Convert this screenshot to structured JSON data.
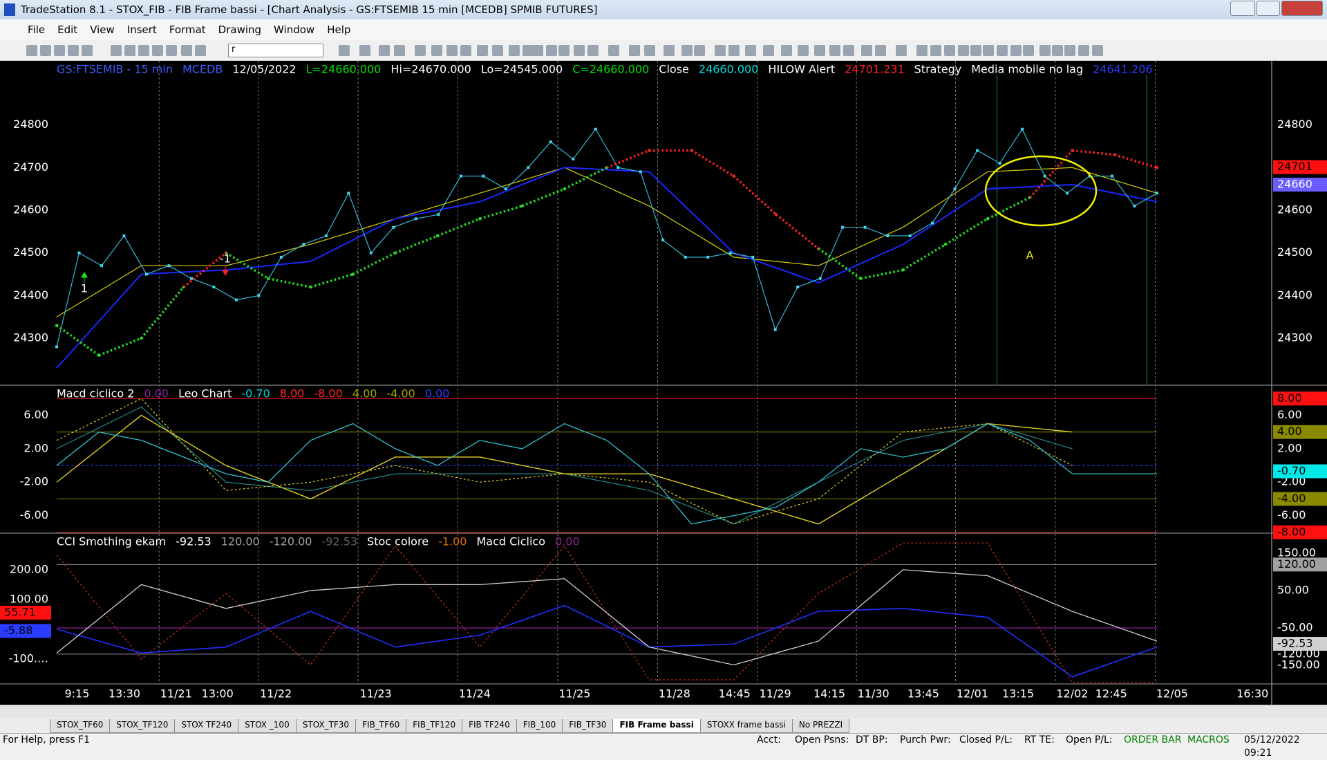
{
  "window": {
    "title": "TradeStation 8.1 - STOX_FIB - FIB Frame bassi - [Chart Analysis - GS:FTSEMIB  15 min  [MCEDB] SPMIB FUTURES]"
  },
  "menu": [
    "File",
    "Edit",
    "View",
    "Insert",
    "Format",
    "Drawing",
    "Window",
    "Help"
  ],
  "toolbar": {
    "combo": "r"
  },
  "chart": {
    "panels": [
      {
        "header": [
          {
            "text": "GS:FTSEMIB - 15 min",
            "color": "#3a5cff"
          },
          {
            "text": "MCEDB",
            "color": "#3a5cff"
          },
          {
            "text": "12/05/2022",
            "color": "#ffffff"
          },
          {
            "text": "L=24660.000",
            "color": "#00e000"
          },
          {
            "text": "Hi=24670.000",
            "color": "#ffffff"
          },
          {
            "text": "Lo=24545.000",
            "color": "#ffffff"
          },
          {
            "text": "C=24660.000",
            "color": "#00e000"
          },
          {
            "text": "Close",
            "color": "#ffffff"
          },
          {
            "text": "24660.000",
            "color": "#00e0e0"
          },
          {
            "text": "HILOW Alert",
            "color": "#ffffff"
          },
          {
            "text": "24701.231",
            "color": "#ff2020"
          },
          {
            "text": "Strategy",
            "color": "#ffffff"
          },
          {
            "text": "Media mobile no lag",
            "color": "#ffffff"
          },
          {
            "text": "24641.206",
            "color": "#2a3cff"
          }
        ],
        "ylim": [
          24190,
          24950
        ],
        "left_ticks": [
          24300,
          24400,
          24500,
          24600,
          24700,
          24800
        ],
        "right_ticks": [
          24300,
          24400,
          24500,
          24600,
          24700,
          24800
        ],
        "right_boxes": [
          {
            "value": 24701,
            "color": "#ff1010",
            "text_color": "#000000"
          },
          {
            "value": 24660,
            "color": "#6a5cff",
            "text_color": "#ffffff"
          }
        ],
        "lines": [
          {
            "values": [
              24350,
              24470,
              24470,
              24520,
              24580,
              24640,
              24700,
              24610,
              24490,
              24470,
              24560,
              24690,
              24700,
              24640
            ],
            "color": "#d8d000",
            "width": 1.2,
            "style": "solid"
          },
          {
            "values": [
              24230,
              24450,
              24460,
              24480,
              24580,
              24620,
              24700,
              24690,
              24500,
              24430,
              24520,
              24650,
              24660,
              24620
            ],
            "color": "#1828ff",
            "width": 2,
            "style": "solid"
          },
          {
            "values": [
              24280,
              24500,
              24470,
              24540,
              24450,
              24470,
              24440,
              24420,
              24390,
              24400,
              24490,
              24520,
              24540,
              24640,
              24500,
              24560,
              24580,
              24590,
              24680,
              24680,
              24650,
              24700,
              24760,
              24720,
              24790,
              24700,
              24690,
              24530,
              24490,
              24490,
              24500,
              24490,
              24320,
              24420,
              24440,
              24560,
              24560,
              24540,
              24540,
              24570,
              24650,
              24740,
              24710,
              24790,
              24680,
              24640,
              24680,
              24680,
              24610,
              24640
            ],
            "color": "#38b8d8",
            "width": 1.2,
            "style": "points"
          },
          {
            "values": [
              24330,
              24260,
              24300,
              24420,
              24500,
              24440,
              24420,
              24450,
              24500,
              24540,
              24580,
              24610,
              24650,
              24700,
              24740,
              24740,
              24680,
              24590,
              24510,
              24440,
              24460,
              24520,
              24580,
              24630,
              24740,
              24730,
              24700
            ],
            "colors": [
              "#20e020",
              "#20e020",
              "#20e020",
              "#20e020",
              "#ff2020",
              "#20e020",
              "#20e020",
              "#20e020",
              "#20e020",
              "#20e020",
              "#20e020",
              "#20e020",
              "#20e020",
              "#20e020",
              "#ff2020",
              "#ff2020",
              "#ff2020",
              "#ff2020",
              "#ff2020",
              "#20e020",
              "#20e020",
              "#20e020",
              "#20e020",
              "#20e020",
              "#ff2020",
              "#ff2020",
              "#ff2020"
            ],
            "style": "dots"
          }
        ],
        "annotations": [
          "1",
          "-1",
          "A"
        ]
      },
      {
        "header": [
          {
            "text": "Macd ciclico 2",
            "color": "#ffffff"
          },
          {
            "text": "0.00",
            "color": "#8a2090"
          },
          {
            "text": "Leo Chart",
            "color": "#ffffff"
          },
          {
            "text": "-0.70",
            "color": "#00d0d0"
          },
          {
            "text": "8.00",
            "color": "#ff2020"
          },
          {
            "text": "-8.00",
            "color": "#ff2020"
          },
          {
            "text": "4.00",
            "color": "#a0a000"
          },
          {
            "text": "-4.00",
            "color": "#a0a000"
          },
          {
            "text": "0.00",
            "color": "#2a3cff"
          }
        ],
        "ylim": [
          -8.1,
          9.6
        ],
        "left_ticks": [
          {
            "value": 6,
            "label": "6.00"
          },
          {
            "value": 2,
            "label": "2.00"
          },
          {
            "value": -2,
            "label": "-2.00"
          },
          {
            "value": -6,
            "label": "-6.00"
          }
        ],
        "right_ticks": [
          {
            "value": 6,
            "label": "6.00"
          },
          {
            "value": 2,
            "label": "2.00"
          },
          {
            "value": -2,
            "label": "-2.00"
          },
          {
            "value": -6,
            "label": "-6.00"
          }
        ],
        "right_boxes": [
          {
            "value": 8,
            "label": "8.00",
            "color": "#ff1010",
            "text_color": "#000000"
          },
          {
            "value": 4,
            "label": "4.00",
            "color": "#8a8a00",
            "text_color": "#000000"
          },
          {
            "value": -0.7,
            "label": "-0.70",
            "color": "#00e8e8",
            "text_color": "#000000"
          },
          {
            "value": -4,
            "label": "-4.00",
            "color": "#8a8a00",
            "text_color": "#000000"
          },
          {
            "value": -8,
            "label": "-8.00",
            "color": "#ff1010",
            "text_color": "#000000"
          }
        ],
        "levels": [
          {
            "value": 8,
            "color": "#d01010",
            "style": "solid"
          },
          {
            "value": -8,
            "color": "#d01010",
            "style": "solid"
          },
          {
            "value": 4,
            "color": "#8a8a00",
            "style": "solid"
          },
          {
            "value": -4,
            "color": "#8a8a00",
            "style": "solid"
          },
          {
            "value": 0,
            "color": "#2a3cff",
            "style": "dashed"
          }
        ],
        "lines": [
          {
            "values": [
              2,
              7,
              -2,
              -3,
              -1,
              -1,
              -1,
              -3,
              -7,
              -2,
              3,
              5,
              2,
              null
            ],
            "color": "#208888",
            "width": 1.2,
            "style": "solid"
          },
          {
            "values": [
              3,
              8,
              -3,
              -2,
              0,
              -2,
              -1,
              -2,
              -7,
              -4,
              4,
              5,
              0,
              null
            ],
            "color": "#e0d020",
            "width": 1.2,
            "style": "dashed"
          },
          {
            "values": [
              -2,
              6,
              0,
              -4,
              1,
              1,
              -1,
              -1,
              -4,
              -7,
              -1,
              5,
              4,
              null
            ],
            "color": "#e0d020",
            "width": 1.4,
            "style": "solid"
          },
          {
            "values": [
              0,
              4,
              3,
              1,
              -1,
              -2,
              3,
              5,
              2,
              0,
              3,
              2,
              5,
              3,
              -1,
              -7,
              -6,
              -5,
              -2,
              2,
              1,
              2,
              5,
              3,
              -1,
              -1,
              -1
            ],
            "color": "#30c0d0",
            "width": 1.3,
            "style": "solid"
          }
        ]
      },
      {
        "header": [
          {
            "text": "CCI Smothing ekam",
            "color": "#ffffff"
          },
          {
            "text": "-92.53",
            "color": "#ffffff"
          },
          {
            "text": "120.00",
            "color": "#a0a0a0"
          },
          {
            "text": "-120.00",
            "color": "#a0a0a0"
          },
          {
            "text": "-92.53",
            "color": "#606060"
          },
          {
            "text": "Stoc colore",
            "color": "#ffffff"
          },
          {
            "text": "-1.00",
            "color": "#e07000"
          },
          {
            "text": "Macd Ciclico",
            "color": "#ffffff"
          },
          {
            "text": "0.00",
            "color": "#8a2090"
          }
        ],
        "ylim": [
          -184,
          323
        ],
        "y2lim": [
          -200,
          204
        ],
        "left_ticks": [
          {
            "value": 200,
            "label": "200.00"
          },
          {
            "value": 100,
            "label": "100.00"
          },
          {
            "value": -100,
            "label": "-100.…"
          }
        ],
        "left_boxes": [
          {
            "value": 55.71,
            "color": "#ff1010",
            "text_color": "#000000"
          },
          {
            "value": -5.88,
            "color": "#2a3cff",
            "text_color": "#000000"
          }
        ],
        "right_ticks": [
          {
            "value": 150,
            "label": "150.00"
          },
          {
            "value": 50,
            "label": "50.00"
          },
          {
            "value": -50,
            "label": "-50.00"
          },
          {
            "value": -120,
            "label": "-120.00"
          },
          {
            "value": -150,
            "label": "-150.00"
          }
        ],
        "right_boxes": [
          {
            "value": 120,
            "label": "120.00",
            "color": "#a0a0a0",
            "text_color": "#000000"
          },
          {
            "value": -92.53,
            "label": "-92.53",
            "color": "#d0d0d0",
            "text_color": "#000000"
          }
        ],
        "levels": [
          {
            "value": 120,
            "color": "#909090",
            "style": "solid"
          },
          {
            "value": -120,
            "color": "#909090",
            "style": "solid"
          },
          {
            "value": -50,
            "color": "#b020b0",
            "style": "solid"
          }
        ],
        "lines": [
          {
            "values": [
              250,
              -100,
              120,
              -120,
              280,
              -60,
              280,
              -170,
              -170,
              120,
              290,
              290,
              -180,
              -180
            ],
            "color": "#c03010",
            "width": 1.2,
            "style": "dashed"
          },
          {
            "values": [
              0,
              -80,
              -60,
              60,
              -60,
              -20,
              80,
              -60,
              -50,
              60,
              70,
              40,
              -160,
              -60
            ],
            "color": "#2030ff",
            "width": 1.6,
            "style": "solid"
          },
          {
            "values": [
              -80,
              150,
              70,
              130,
              150,
              150,
              170,
              -60,
              -120,
              -40,
              200,
              180,
              60,
              -40
            ],
            "color": "#d0d0d0",
            "width": 1.3,
            "style": "solid"
          }
        ]
      }
    ],
    "x_labels": [
      "9:15",
      "13:30",
      "11/21",
      "13:00",
      "11/22",
      "11/23",
      "11/24",
      "11/25",
      "11/28",
      "14:45",
      "11/29",
      "14:15",
      "11/30",
      "13:45",
      "12/01",
      "13:15",
      "12/02",
      "12:45",
      "12/05",
      "16:30"
    ]
  },
  "tabs": [
    "STOX_TF60",
    "STOX_TF120",
    "STOX TF240",
    "STOX _100",
    "STOX_TF30",
    "FIB_TF60",
    "FIB_TF120",
    "FIB TF240",
    "FIB_100",
    "FIB_TF30",
    "FIB Frame bassi",
    "STOXX frame bassi",
    "No PREZZI"
  ],
  "status": {
    "help": "For Help, press F1",
    "fields": [
      "Acct:",
      "Open Psns:",
      "DT BP:",
      "Purch Pwr:",
      "Closed P/L:",
      "RT TE:",
      "Open P/L:"
    ],
    "order_bar": "ORDER BAR",
    "macros": "MACROS",
    "datetime": "05/12/2022 09:21"
  }
}
